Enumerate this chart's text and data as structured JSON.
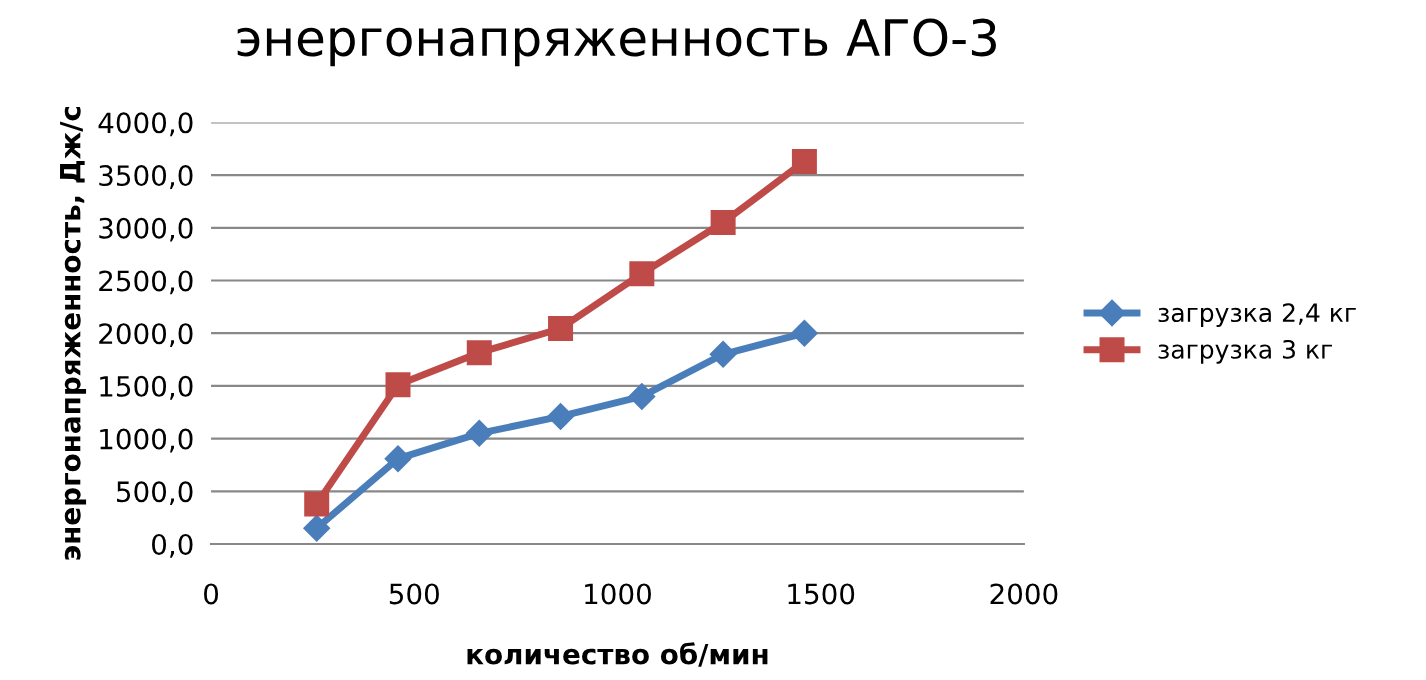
{
  "chart_data": {
    "type": "line",
    "title": "энергонапряженность АГО-3",
    "xlabel": "количество об/мин",
    "ylabel": "энергонапряженность, Дж/с",
    "x": [
      260,
      460,
      660,
      860,
      1060,
      1260,
      1460
    ],
    "series": [
      {
        "name": "загрузка 2,4 кг",
        "color": "#4a7ebb",
        "marker": "diamond",
        "values": [
          150,
          810,
          1050,
          1210,
          1400,
          1800,
          2000
        ]
      },
      {
        "name": "загрузка 3 кг",
        "color": "#be4b48",
        "marker": "square",
        "values": [
          380,
          1510,
          1815,
          2045,
          2565,
          3050,
          3630
        ]
      }
    ],
    "xlim": [
      0,
      2000
    ],
    "xticks": [
      0,
      500,
      1000,
      1500,
      2000
    ],
    "ylim": [
      0,
      4000
    ],
    "yticks": [
      {
        "value": 0,
        "label": "0,0"
      },
      {
        "value": 500,
        "label": "500,0"
      },
      {
        "value": 1000,
        "label": "1000,0"
      },
      {
        "value": 1500,
        "label": "1500,0"
      },
      {
        "value": 2000,
        "label": "2000,0"
      },
      {
        "value": 2500,
        "label": "2500,0"
      },
      {
        "value": 3000,
        "label": "3000,0"
      },
      {
        "value": 3500,
        "label": "3500,0"
      },
      {
        "value": 4000,
        "label": "4000,0"
      }
    ],
    "grid": "y",
    "legend": "right",
    "line_style": "solid"
  }
}
